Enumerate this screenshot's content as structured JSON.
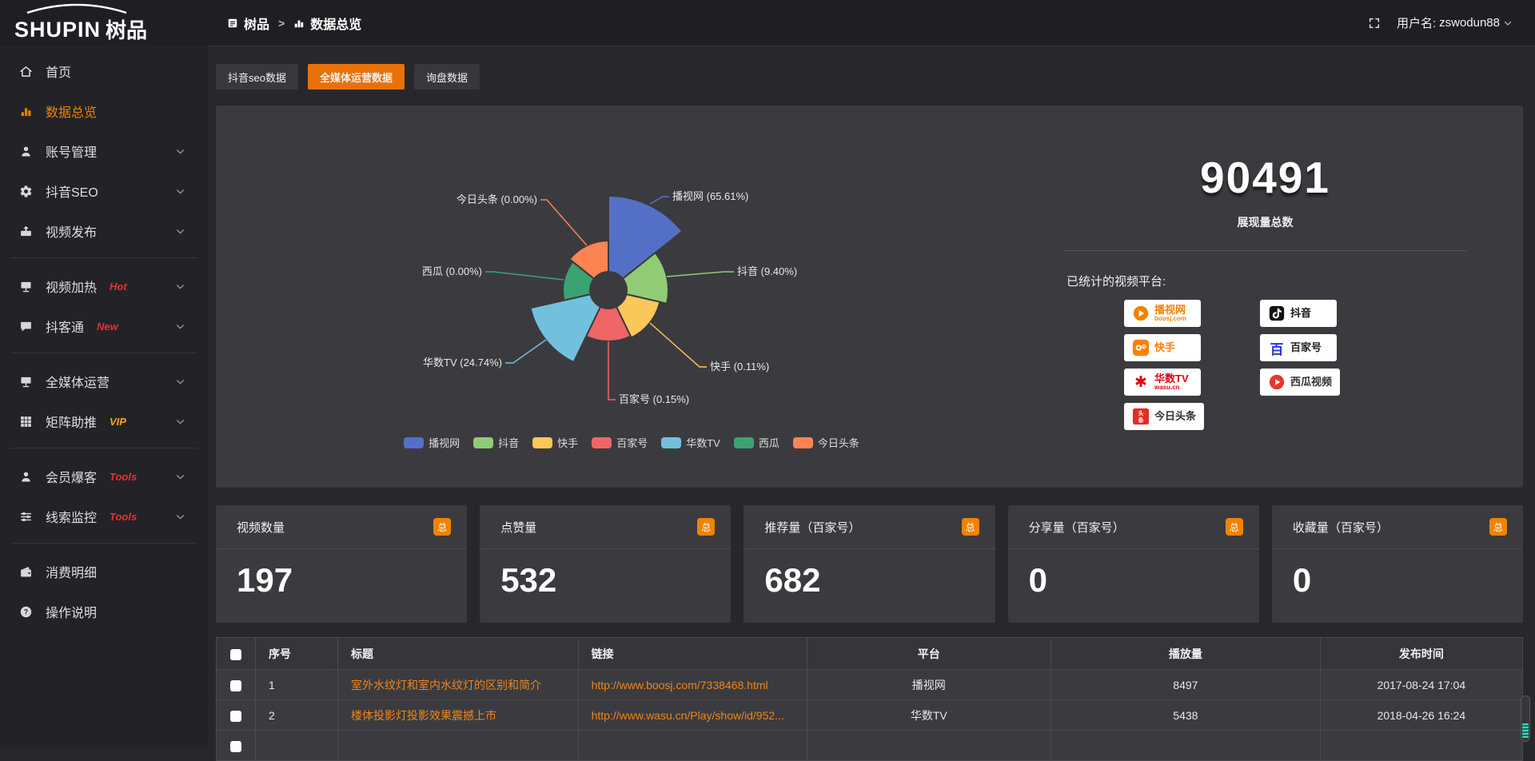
{
  "app": {
    "logo_en": "SHUPIN",
    "logo_cn": "树品"
  },
  "topbar": {
    "breadcrumb_root": "树品",
    "breadcrumb_sep": ">",
    "breadcrumb_current": "数据总览",
    "username_label": "用户名:",
    "username_value": "zswodun88"
  },
  "sidebar": {
    "items": [
      {
        "label": "首页",
        "icon": "home",
        "active": false,
        "badge": "",
        "badge_color": "",
        "chevron": false,
        "divider_after": false
      },
      {
        "label": "数据总览",
        "icon": "bar-chart",
        "active": true,
        "badge": "",
        "badge_color": "",
        "chevron": false,
        "divider_after": false
      },
      {
        "label": "账号管理",
        "icon": "user",
        "active": false,
        "badge": "",
        "badge_color": "",
        "chevron": true,
        "divider_after": false
      },
      {
        "label": "抖音SEO",
        "icon": "gear",
        "active": false,
        "badge": "",
        "badge_color": "",
        "chevron": true,
        "divider_after": false
      },
      {
        "label": "视频发布",
        "icon": "publish",
        "active": false,
        "badge": "",
        "badge_color": "",
        "chevron": true,
        "divider_after": true
      },
      {
        "label": "视频加热",
        "icon": "monitor",
        "active": false,
        "badge": "Hot",
        "badge_color": "#e8312f",
        "chevron": true,
        "divider_after": false
      },
      {
        "label": "抖客通",
        "icon": "chat",
        "active": false,
        "badge": "New",
        "badge_color": "#e8312f",
        "chevron": true,
        "divider_after": true
      },
      {
        "label": "全媒体运营",
        "icon": "monitor",
        "active": false,
        "badge": "",
        "badge_color": "",
        "chevron": true,
        "divider_after": false
      },
      {
        "label": "矩阵助推",
        "icon": "grid",
        "active": false,
        "badge": "VIP",
        "badge_color": "#f5a623",
        "chevron": true,
        "divider_after": true
      },
      {
        "label": "会员爆客",
        "icon": "user",
        "active": false,
        "badge": "Tools",
        "badge_color": "#e8312f",
        "chevron": true,
        "divider_after": false
      },
      {
        "label": "线索监控",
        "icon": "sliders",
        "active": false,
        "badge": "Tools",
        "badge_color": "#e8312f",
        "chevron": true,
        "divider_after": true
      },
      {
        "label": "消费明细",
        "icon": "wallet",
        "active": false,
        "badge": "",
        "badge_color": "",
        "chevron": false,
        "divider_after": false
      },
      {
        "label": "操作说明",
        "icon": "help",
        "active": false,
        "badge": "",
        "badge_color": "",
        "chevron": false,
        "divider_after": false
      }
    ]
  },
  "tabs": [
    {
      "label": "抖音seo数据",
      "active": false
    },
    {
      "label": "全媒体运营数据",
      "active": true
    },
    {
      "label": "询盘数据",
      "active": false
    }
  ],
  "chart_data": {
    "type": "pie",
    "variant": "nightingale-rose",
    "title": "",
    "unit": "percent",
    "series": [
      {
        "name": "播视网",
        "value": 65.61,
        "label": "播视网 (65.61%)",
        "color": "#5470c6"
      },
      {
        "name": "抖音",
        "value": 9.4,
        "label": "抖音 (9.40%)",
        "color": "#91cc75"
      },
      {
        "name": "快手",
        "value": 0.11,
        "label": "快手 (0.11%)",
        "color": "#fac858"
      },
      {
        "name": "百家号",
        "value": 0.15,
        "label": "百家号 (0.15%)",
        "color": "#ee6666"
      },
      {
        "name": "华数TV",
        "value": 24.74,
        "label": "华数TV (24.74%)",
        "color": "#73c0de"
      },
      {
        "name": "西瓜",
        "value": 0.0,
        "label": "西瓜 (0.00%)",
        "color": "#3ba272"
      },
      {
        "name": "今日头条",
        "value": 0.0,
        "label": "今日头条 (0.00%)",
        "color": "#fc8452"
      }
    ],
    "legend": {
      "position": "bottom",
      "items": [
        "播视网",
        "抖音",
        "快手",
        "百家号",
        "华数TV",
        "西瓜",
        "今日头条"
      ]
    }
  },
  "summary": {
    "total_value": "90491",
    "total_label": "展现量总数",
    "platforms_title": "已统计的视频平台:",
    "platforms_left": [
      {
        "name": "播视网",
        "sub": "boosj.com",
        "style": "boosj"
      },
      {
        "name": "快手",
        "sub": "",
        "style": "kuaishou"
      },
      {
        "name": "华数TV",
        "sub": "wasu.cn",
        "style": "wasu"
      },
      {
        "name": "今日头条",
        "sub": "",
        "style": "toutiao"
      }
    ],
    "platforms_right": [
      {
        "name": "抖音",
        "sub": "",
        "style": "douyin"
      },
      {
        "name": "百家号",
        "sub": "",
        "style": "baijiahao"
      },
      {
        "name": "西瓜视频",
        "sub": "",
        "style": "xigua"
      }
    ]
  },
  "stat_cards": [
    {
      "title": "视频数量",
      "badge": "总",
      "value": "197"
    },
    {
      "title": "点赞量",
      "badge": "总",
      "value": "532"
    },
    {
      "title": "推荐量（百家号）",
      "badge": "总",
      "value": "682"
    },
    {
      "title": "分享量（百家号）",
      "badge": "总",
      "value": "0"
    },
    {
      "title": "收藏量（百家号）",
      "badge": "总",
      "value": "0"
    }
  ],
  "table": {
    "headers": [
      "序号",
      "标题",
      "链接",
      "平台",
      "播放量",
      "发布时间"
    ],
    "rows": [
      {
        "index": "1",
        "title": "室外水纹灯和室内水纹灯的区别和简介",
        "link": "http://www.boosj.com/7338468.html",
        "platform": "播视网",
        "plays": "8497",
        "time": "2017-08-24 17:04"
      },
      {
        "index": "2",
        "title": "楼体投影灯投影效果震撼上市",
        "link": "http://www.wasu.cn/Play/show/id/952...",
        "platform": "华数TV",
        "plays": "5438",
        "time": "2018-04-26 16:24"
      },
      {
        "index": "",
        "title": "",
        "link": "",
        "platform": "",
        "plays": "",
        "time": ""
      }
    ]
  }
}
